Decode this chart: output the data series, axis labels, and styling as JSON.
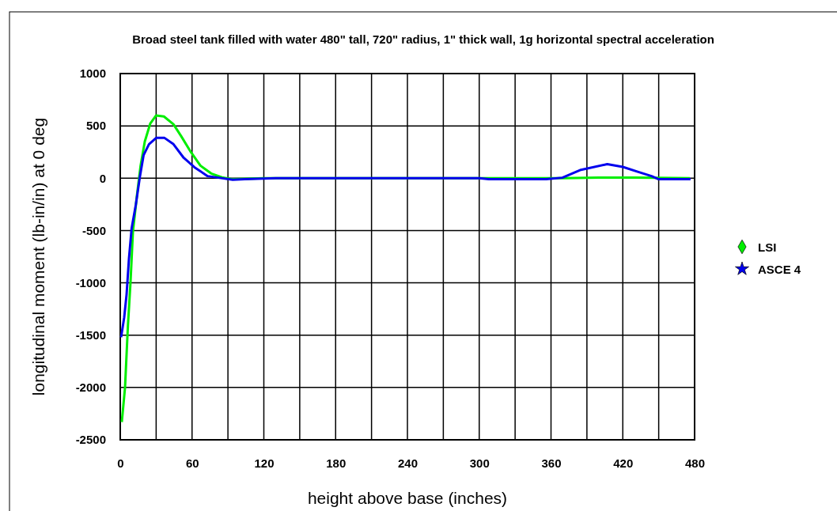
{
  "chart_data": {
    "type": "line",
    "title": "Broad steel tank filled with water 480\" tall, 720\" radius, 1\" thick wall, 1g horizontal spectral acceleration",
    "xlabel": "height above base (inches)",
    "ylabel": "longitudinal moment (lb-in/in) at 0 deg",
    "xlim": [
      0,
      480
    ],
    "xticks": [
      0,
      {
        "value": 30,
        "label": null
      },
      60,
      {
        "value": 90,
        "label": null
      },
      120,
      {
        "value": 150,
        "label": null
      },
      180,
      {
        "value": 210,
        "label": null
      },
      240,
      {
        "value": 270,
        "label": null
      },
      300,
      {
        "value": 330,
        "label": null
      },
      360,
      {
        "value": 390,
        "label": null
      },
      420,
      {
        "value": 450,
        "label": null
      },
      480
    ],
    "ylim": [
      -2500,
      1000
    ],
    "yticks": [
      -2500,
      -2000,
      -1500,
      -1000,
      -500,
      0,
      500,
      1000
    ],
    "grid": true,
    "legend": "right",
    "series": [
      {
        "name": "LSI",
        "color": "#00ee00",
        "x": [
          1.3,
          4,
          6.4,
          8.6,
          10.6,
          14,
          17,
          20.5,
          25,
          30,
          36.5,
          44.5,
          51,
          59,
          67,
          76,
          85,
          94,
          120,
          200,
          300,
          370,
          400,
          430,
          476
        ],
        "values": [
          -2330,
          -2000,
          -1410,
          -990,
          -510,
          -160,
          120,
          350,
          520,
          600,
          590,
          515,
          400,
          250,
          120,
          45,
          8,
          -10,
          0,
          0,
          0,
          0,
          5,
          5,
          0
        ]
      },
      {
        "name": "ASCE 4",
        "color": "#0000ee",
        "x": [
          0.7,
          3.3,
          5.3,
          7.3,
          9.5,
          13,
          16.5,
          19.5,
          24,
          30,
          37,
          44.5,
          53,
          62,
          73,
          82,
          94,
          104,
          130,
          200,
          300,
          308,
          356,
          369.5,
          385,
          407,
          420,
          433.5,
          444,
          450,
          476.6
        ],
        "values": [
          -1520,
          -1330,
          -1110,
          -765,
          -480,
          -255,
          20,
          220,
          325,
          385,
          385,
          325,
          195,
          105,
          20,
          5,
          -15,
          -10,
          0,
          0,
          0,
          -10,
          -10,
          5,
          80,
          134,
          108,
          58,
          20,
          -10,
          -10
        ]
      }
    ]
  }
}
